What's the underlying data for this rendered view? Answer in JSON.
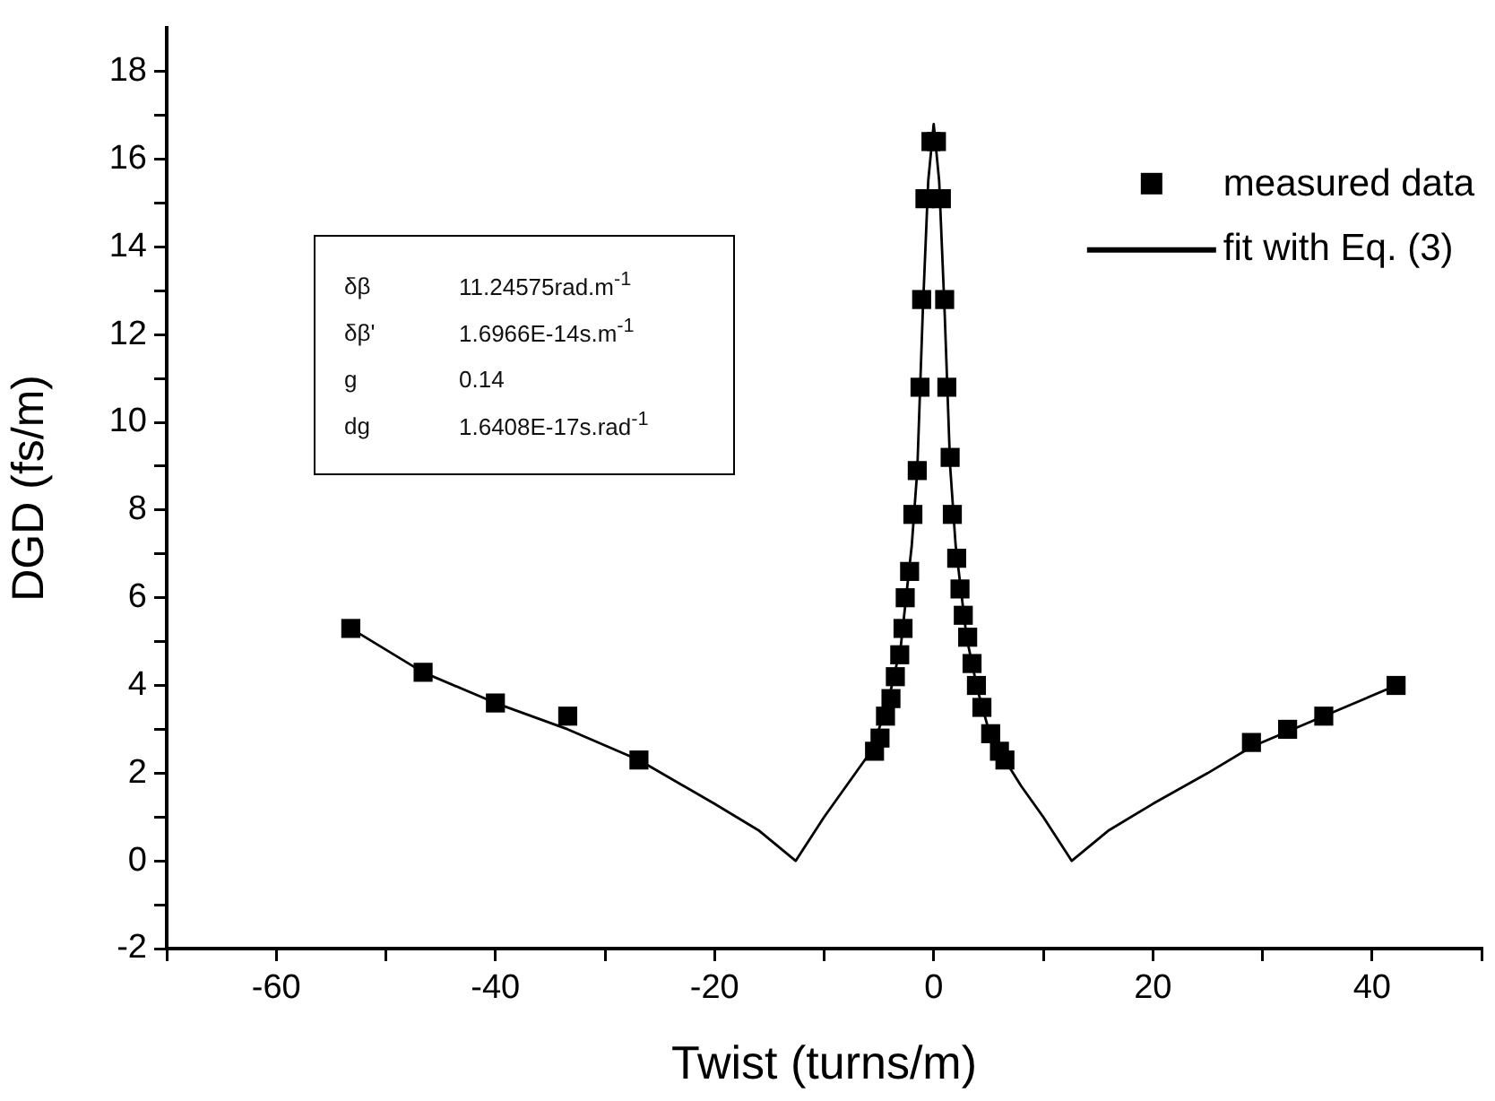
{
  "chart_data": {
    "type": "scatter",
    "xlabel": "Twist (turns/m)",
    "ylabel": "DGD (fs/m)",
    "annotations": [
      "δβ 11.24575rad.m$^{-1}$",
      "δβ' 1.6966E-14s.m$^{-1}$",
      "g 0.14",
      "dg 1.6408E-17s.rad$^{-1}$"
    ],
    "xlim": [
      -70,
      50
    ],
    "ylim": [
      -2,
      19
    ],
    "xticks": [
      {
        "value": -70,
        "label": null
      },
      -60,
      {
        "value": -50,
        "label": null
      },
      -40,
      {
        "value": -30,
        "label": null
      },
      -20,
      {
        "value": -10,
        "label": null
      },
      0,
      {
        "value": 10,
        "label": null
      },
      20,
      {
        "value": 30,
        "label": null
      },
      40,
      {
        "value": 50,
        "label": null
      }
    ],
    "yticks": [
      -2,
      {
        "value": -1,
        "label": null
      },
      0,
      {
        "value": 1,
        "label": null
      },
      2,
      {
        "value": 3,
        "label": null
      },
      4,
      {
        "value": 5,
        "label": null
      },
      6,
      {
        "value": 7,
        "label": null
      },
      8,
      {
        "value": 9,
        "label": null
      },
      10,
      {
        "value": 11,
        "label": null
      },
      12,
      {
        "value": 13,
        "label": null
      },
      14,
      {
        "value": 15,
        "label": null
      },
      16,
      {
        "value": 17,
        "label": null
      },
      18
    ],
    "grid": false,
    "legend": "top right",
    "series": [
      {
        "name": "measured data",
        "marker": "square",
        "color": "#000000",
        "x": [
          -53.2,
          -46.6,
          -40.0,
          -33.4,
          -26.9,
          -5.4,
          -4.9,
          -4.4,
          -3.9,
          -3.5,
          -3.1,
          -2.8,
          -2.6,
          -2.2,
          -1.9,
          -1.5,
          -1.25,
          -1.1,
          -0.8,
          -0.25,
          0.25,
          0.7,
          1.0,
          1.2,
          1.5,
          1.7,
          2.1,
          2.4,
          2.7,
          3.1,
          3.5,
          3.9,
          4.4,
          5.2,
          6.0,
          6.5,
          29.0,
          32.3,
          35.6,
          42.2
        ],
        "values": [
          5.3,
          4.3,
          3.6,
          3.3,
          2.3,
          2.5,
          2.8,
          3.3,
          3.7,
          4.2,
          4.7,
          5.3,
          6.0,
          6.6,
          7.9,
          8.9,
          10.8,
          12.8,
          15.1,
          16.4,
          16.4,
          15.1,
          12.8,
          10.8,
          9.2,
          7.9,
          6.9,
          6.2,
          5.6,
          5.1,
          4.5,
          4.0,
          3.5,
          2.9,
          2.5,
          2.3,
          2.7,
          3.0,
          3.3,
          4.0
        ]
      },
      {
        "name": "fit with Eq. (3)",
        "type": "line",
        "marker": "none",
        "line_style": "solid",
        "color": "#000000",
        "x": [
          -53.2,
          -46.6,
          -40,
          -33.4,
          -26.9,
          -20,
          -16,
          -12.6,
          -10,
          -8,
          -6,
          -5,
          -4,
          -3,
          -2,
          -1.5,
          -1,
          -0.5,
          0,
          0.5,
          1,
          1.5,
          2,
          3,
          4,
          5,
          6,
          8,
          10,
          12.6,
          16,
          20,
          25,
          29,
          35.6,
          42.2
        ],
        "values": [
          5.3,
          4.3,
          3.6,
          3.0,
          2.3,
          1.3,
          0.7,
          0,
          1.0,
          1.7,
          2.4,
          3.0,
          3.8,
          4.9,
          7.2,
          8.9,
          12.5,
          15.5,
          16.8,
          15.5,
          12.5,
          9.0,
          7.2,
          5.1,
          3.9,
          3.0,
          2.5,
          1.7,
          1.0,
          0,
          0.7,
          1.3,
          2.0,
          2.6,
          3.3,
          4.0
        ]
      }
    ]
  }
}
